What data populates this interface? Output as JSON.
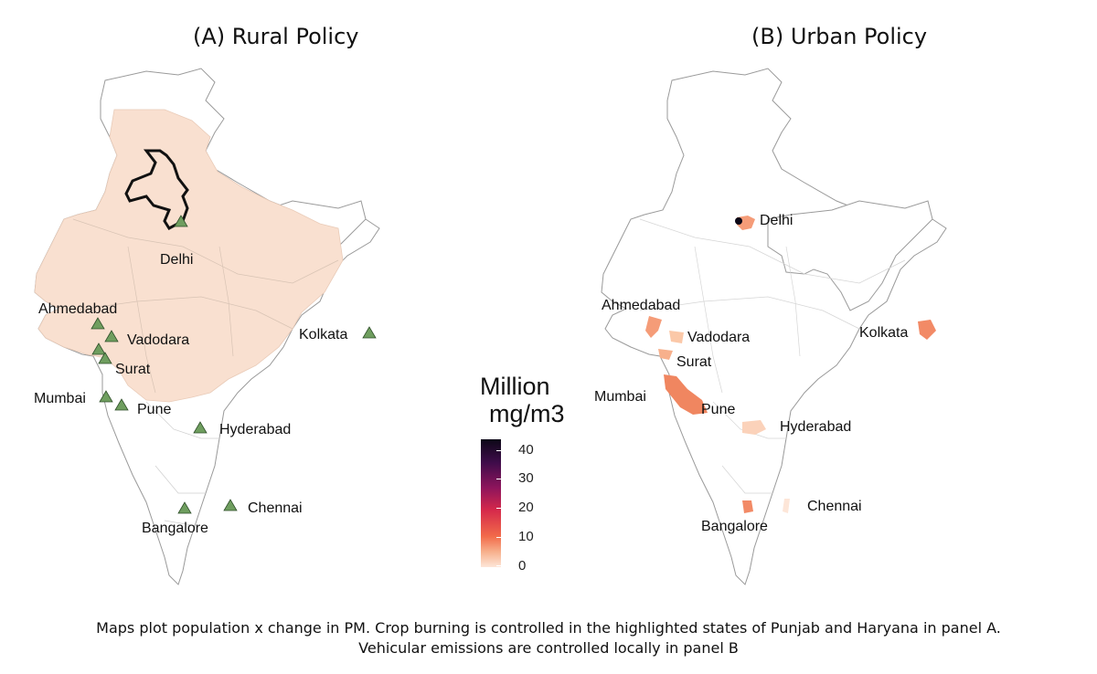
{
  "panels": {
    "a": {
      "title": "(A) Rural Policy"
    },
    "b": {
      "title": "(B) Urban Policy"
    }
  },
  "cities_a": {
    "delhi": "Delhi",
    "ahmedabad": "Ahmedabad",
    "vadodara": "Vadodara",
    "surat": "Surat",
    "mumbai": "Mumbai",
    "pune": "Pune",
    "hyderabad": "Hyderabad",
    "kolkata": "Kolkata",
    "chennai": "Chennai",
    "bangalore": "Bangalore"
  },
  "cities_b": {
    "delhi": "Delhi",
    "ahmedabad": "Ahmedabad",
    "vadodara": "Vadodara",
    "surat": "Surat",
    "mumbai": "Mumbai",
    "pune": "Pune",
    "hyderabad": "Hyderabad",
    "kolkata": "Kolkata",
    "chennai": "Chennai",
    "bangalore": "Bangalore"
  },
  "legend": {
    "title_line1": "Million",
    "title_line2": "mg/m3",
    "ticks": [
      "40",
      "30",
      "20",
      "10",
      "0"
    ]
  },
  "caption": {
    "line1": "Maps plot population x change in PM. Crop burning is controlled in the highlighted states of Punjab and Haryana in panel A.",
    "line2": "Vehicular emissions are controlled locally in panel B"
  },
  "colors": {
    "low": "#fde6d8",
    "high": "#0c0817",
    "marker": "#6f9e5f"
  }
}
